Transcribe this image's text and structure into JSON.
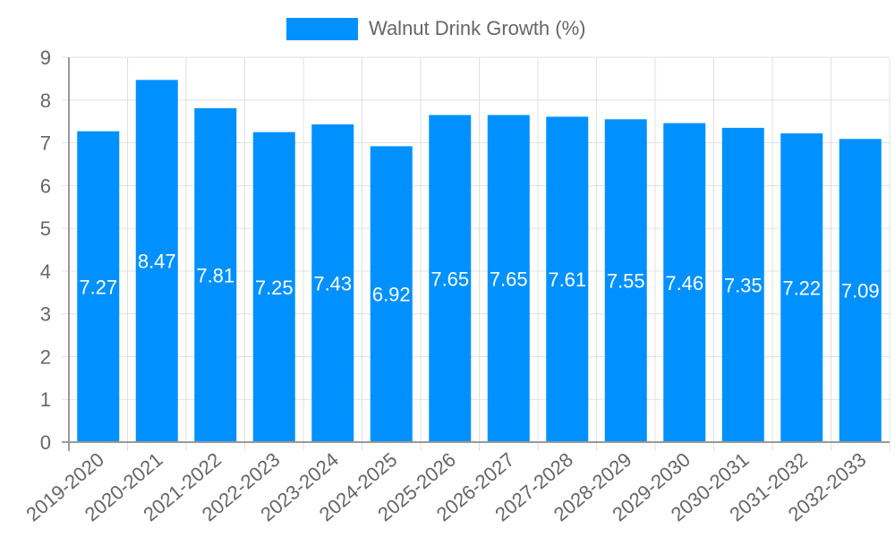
{
  "chart_data": {
    "type": "bar",
    "title": "",
    "legend": [
      {
        "label": "Walnut Drink Growth (%)",
        "color": "#0091ff"
      }
    ],
    "legend_position": "top",
    "categories": [
      "2019-2020",
      "2020-2021",
      "2021-2022",
      "2022-2023",
      "2023-2024",
      "2024-2025",
      "2025-2026",
      "2026-2027",
      "2027-2028",
      "2028-2029",
      "2029-2030",
      "2030-2031",
      "2031-2032",
      "2032-2033"
    ],
    "series": [
      {
        "name": "Walnut Drink Growth (%)",
        "values": [
          7.27,
          8.47,
          7.81,
          7.25,
          7.43,
          6.92,
          7.65,
          7.65,
          7.61,
          7.55,
          7.46,
          7.35,
          7.22,
          7.09
        ]
      }
    ],
    "xlabel": "",
    "ylabel": "",
    "ylim": [
      0,
      9
    ],
    "yticks": [
      0,
      1,
      2,
      3,
      4,
      5,
      6,
      7,
      8,
      9
    ],
    "grid": true,
    "data_labels": true
  },
  "colors": {
    "bar": "#0091ff",
    "grid": "#e0e0e0",
    "axis": "#999999",
    "tick_text": "#666666",
    "label_text": "#ffffff"
  }
}
